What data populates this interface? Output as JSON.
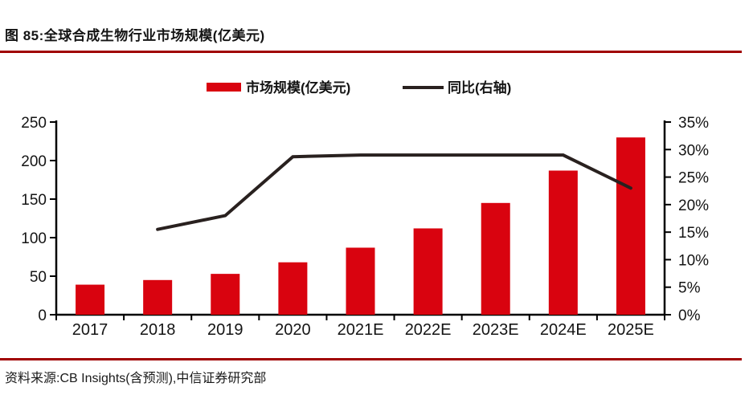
{
  "page": {
    "figure_title": "图 85:全球合成生物行业市场规模(亿美元)",
    "source": "资料来源:CB Insights(含预测),中信证券研究部"
  },
  "legend": {
    "bar_label": "市场规模(亿美元)",
    "line_label": "同比(右轴)"
  },
  "colors": {
    "bar": "#d9030f",
    "line": "#29211f",
    "rule": "#a00000",
    "axis": "#000000",
    "text": "#141414"
  },
  "chart_data": {
    "type": "bar",
    "subtype": "bar-line-combo",
    "title": "全球合成生物行业市场规模(亿美元)",
    "categories": [
      "2017",
      "2018",
      "2019",
      "2020",
      "2021E",
      "2022E",
      "2023E",
      "2024E",
      "2025E"
    ],
    "series": [
      {
        "name": "市场规模(亿美元)",
        "type": "bar",
        "axis": "left",
        "values": [
          39,
          45,
          53,
          68,
          87,
          112,
          145,
          187,
          230
        ]
      },
      {
        "name": "同比(右轴)",
        "type": "line",
        "axis": "right",
        "unit": "%",
        "values": [
          null,
          15.5,
          18,
          28.7,
          29,
          29,
          29,
          29,
          23
        ]
      }
    ],
    "left_axis": {
      "min": 0,
      "max": 250,
      "step": 50,
      "ticks": [
        "0",
        "50",
        "100",
        "150",
        "200",
        "250"
      ]
    },
    "right_axis": {
      "min": 0,
      "max": 35,
      "step": 5,
      "ticks": [
        "0%",
        "5%",
        "10%",
        "15%",
        "20%",
        "25%",
        "30%",
        "35%"
      ]
    },
    "grid": false,
    "legend_position": "top"
  }
}
